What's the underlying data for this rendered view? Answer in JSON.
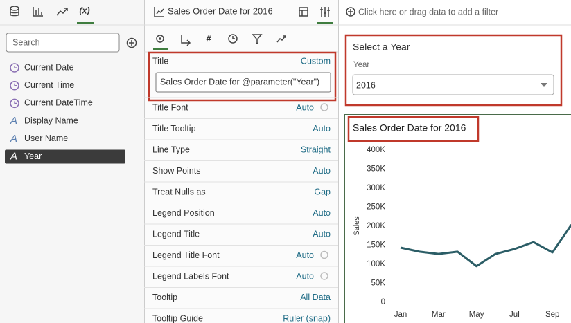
{
  "data_panel": {
    "search_placeholder": "Search",
    "items": [
      "Current Date",
      "Current Time",
      "Current DateTime",
      "Display Name",
      "User Name",
      "Year"
    ],
    "selected": "Year"
  },
  "properties_panel": {
    "header": "Sales Order Date for 2016",
    "title_property": {
      "label": "Title",
      "value": "Custom",
      "input": "Sales Order Date for @parameter(\"Year\")"
    },
    "rows": [
      {
        "label": "Title Font",
        "value": "Auto"
      },
      {
        "label": "Title Tooltip",
        "value": "Auto"
      },
      {
        "label": "Line Type",
        "value": "Straight"
      },
      {
        "label": "Show Points",
        "value": "Auto"
      },
      {
        "label": "Treat Nulls as",
        "value": "Gap"
      },
      {
        "label": "Legend Position",
        "value": "Auto"
      },
      {
        "label": "Legend Title",
        "value": "Auto"
      },
      {
        "label": "Legend Title Font",
        "value": "Auto"
      },
      {
        "label": "Legend Labels Font",
        "value": "Auto"
      },
      {
        "label": "Tooltip",
        "value": "All Data"
      },
      {
        "label": "Tooltip Guide",
        "value": "Ruler (snap)"
      }
    ]
  },
  "canvas": {
    "filter_bar": "Click here or drag data to add a filter",
    "year_selector": {
      "title": "Select a Year",
      "label": "Year",
      "value": "2016"
    },
    "chart": {
      "type": "line",
      "title": "Sales Order Date for 2016",
      "y_label": "Sales",
      "categories": [
        "Jan",
        null,
        "Mar",
        null,
        "May",
        null,
        "Jul",
        null,
        "Sep",
        null
      ],
      "values": [
        143600,
        133000,
        127000,
        133000,
        95000,
        127000,
        140000,
        158000,
        131000,
        204000
      ],
      "color": "#2b5d66",
      "ylim": [
        0,
        400000
      ],
      "yticks": [
        0,
        {
          "value": 50000,
          "label": "50K"
        },
        {
          "value": 100000,
          "label": "100K"
        },
        {
          "value": 150000,
          "label": "150K"
        },
        {
          "value": 200000,
          "label": "200K"
        },
        {
          "value": 250000,
          "label": "250K"
        },
        {
          "value": 300000,
          "label": "300K"
        },
        {
          "value": 350000,
          "label": "350K"
        },
        {
          "value": 400000,
          "label": "400K"
        }
      ]
    }
  }
}
